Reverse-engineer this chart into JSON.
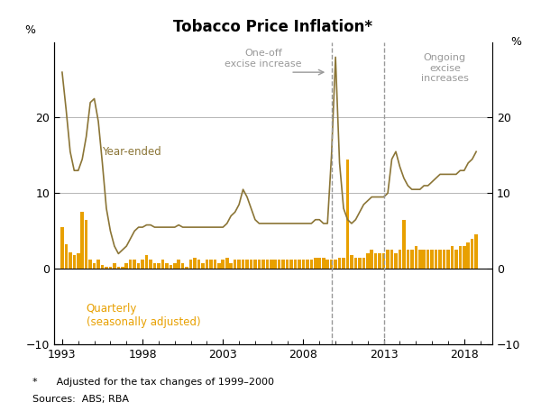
{
  "title": "Tobacco Price Inflation*",
  "footnote": "*      Adjusted for the tax changes of 1999–2000",
  "sources": "Sources:  ABS; RBA",
  "ylim": [
    -10,
    30
  ],
  "yticks": [
    -10,
    0,
    10,
    20
  ],
  "xlim_start": 1992.5,
  "xlim_end": 2019.75,
  "xticks": [
    1993,
    1998,
    2003,
    2008,
    2013,
    2018
  ],
  "dashed_line1": 2009.75,
  "dashed_line2": 2013.0,
  "line_color": "#8B7536",
  "bar_color": "#E8A000",
  "annotation1_text": "One-off\nexcise increase",
  "annotation2_text": "Ongoing\nexcise\nincreases",
  "label_year_ended": "Year-ended",
  "label_quarterly": "Quarterly\n(seasonally adjusted)",
  "quarterly_dates": [
    1993.0,
    1993.25,
    1993.5,
    1993.75,
    1994.0,
    1994.25,
    1994.5,
    1994.75,
    1995.0,
    1995.25,
    1995.5,
    1995.75,
    1996.0,
    1996.25,
    1996.5,
    1996.75,
    1997.0,
    1997.25,
    1997.5,
    1997.75,
    1998.0,
    1998.25,
    1998.5,
    1998.75,
    1999.0,
    1999.25,
    1999.5,
    1999.75,
    2000.0,
    2000.25,
    2000.5,
    2000.75,
    2001.0,
    2001.25,
    2001.5,
    2001.75,
    2002.0,
    2002.25,
    2002.5,
    2002.75,
    2003.0,
    2003.25,
    2003.5,
    2003.75,
    2004.0,
    2004.25,
    2004.5,
    2004.75,
    2005.0,
    2005.25,
    2005.5,
    2005.75,
    2006.0,
    2006.25,
    2006.5,
    2006.75,
    2007.0,
    2007.25,
    2007.5,
    2007.75,
    2008.0,
    2008.25,
    2008.5,
    2008.75,
    2009.0,
    2009.25,
    2009.5,
    2009.75,
    2010.0,
    2010.25,
    2010.5,
    2010.75,
    2011.0,
    2011.25,
    2011.5,
    2011.75,
    2012.0,
    2012.25,
    2012.5,
    2012.75,
    2013.0,
    2013.25,
    2013.5,
    2013.75,
    2014.0,
    2014.25,
    2014.5,
    2014.75,
    2015.0,
    2015.25,
    2015.5,
    2015.75,
    2016.0,
    2016.25,
    2016.5,
    2016.75,
    2017.0,
    2017.25,
    2017.5,
    2017.75,
    2018.0,
    2018.25,
    2018.5,
    2018.75
  ],
  "quarterly_values": [
    5.5,
    3.2,
    2.2,
    1.8,
    2.0,
    7.5,
    6.5,
    1.2,
    0.8,
    1.2,
    0.5,
    0.3,
    0.3,
    0.8,
    0.3,
    0.3,
    0.8,
    1.2,
    1.2,
    0.8,
    1.2,
    1.8,
    1.2,
    0.8,
    0.8,
    1.2,
    0.8,
    0.5,
    0.8,
    1.2,
    0.8,
    0.3,
    1.2,
    1.5,
    1.2,
    0.8,
    1.2,
    1.2,
    1.2,
    0.8,
    1.2,
    1.5,
    0.8,
    1.2,
    1.2,
    1.2,
    1.2,
    1.2,
    1.2,
    1.2,
    1.2,
    1.2,
    1.2,
    1.2,
    1.2,
    1.2,
    1.2,
    1.2,
    1.2,
    1.2,
    1.2,
    1.2,
    1.2,
    1.5,
    1.5,
    1.5,
    1.2,
    1.2,
    1.2,
    1.5,
    1.5,
    14.5,
    1.8,
    1.5,
    1.5,
    1.5,
    2.0,
    2.5,
    2.0,
    2.0,
    2.0,
    2.5,
    2.5,
    2.0,
    2.5,
    6.5,
    2.5,
    2.5,
    3.0,
    2.5,
    2.5,
    2.5,
    2.5,
    2.5,
    2.5,
    2.5,
    2.5,
    3.0,
    2.5,
    3.0,
    3.0,
    3.5,
    4.0,
    4.5
  ],
  "yearly_dates": [
    1993.0,
    1993.25,
    1993.5,
    1993.75,
    1994.0,
    1994.25,
    1994.5,
    1994.75,
    1995.0,
    1995.25,
    1995.5,
    1995.75,
    1996.0,
    1996.25,
    1996.5,
    1996.75,
    1997.0,
    1997.25,
    1997.5,
    1997.75,
    1998.0,
    1998.25,
    1998.5,
    1998.75,
    1999.0,
    1999.25,
    1999.5,
    1999.75,
    2000.0,
    2000.25,
    2000.5,
    2000.75,
    2001.0,
    2001.25,
    2001.5,
    2001.75,
    2002.0,
    2002.25,
    2002.5,
    2002.75,
    2003.0,
    2003.25,
    2003.5,
    2003.75,
    2004.0,
    2004.25,
    2004.5,
    2004.75,
    2005.0,
    2005.25,
    2005.5,
    2005.75,
    2006.0,
    2006.25,
    2006.5,
    2006.75,
    2007.0,
    2007.25,
    2007.5,
    2007.75,
    2008.0,
    2008.25,
    2008.5,
    2008.75,
    2009.0,
    2009.25,
    2009.5,
    2009.75,
    2010.0,
    2010.25,
    2010.5,
    2010.75,
    2011.0,
    2011.25,
    2011.5,
    2011.75,
    2012.0,
    2012.25,
    2012.5,
    2012.75,
    2013.0,
    2013.25,
    2013.5,
    2013.75,
    2014.0,
    2014.25,
    2014.5,
    2014.75,
    2015.0,
    2015.25,
    2015.5,
    2015.75,
    2016.0,
    2016.25,
    2016.5,
    2016.75,
    2017.0,
    2017.25,
    2017.5,
    2017.75,
    2018.0,
    2018.25,
    2018.5,
    2018.75
  ],
  "yearly_values": [
    26.0,
    21.0,
    15.5,
    13.0,
    13.0,
    14.5,
    17.5,
    22.0,
    22.5,
    19.5,
    14.0,
    8.0,
    5.0,
    3.0,
    2.0,
    2.5,
    3.0,
    4.0,
    5.0,
    5.5,
    5.5,
    5.8,
    5.8,
    5.5,
    5.5,
    5.5,
    5.5,
    5.5,
    5.5,
    5.8,
    5.5,
    5.5,
    5.5,
    5.5,
    5.5,
    5.5,
    5.5,
    5.5,
    5.5,
    5.5,
    5.5,
    6.0,
    7.0,
    7.5,
    8.5,
    10.5,
    9.5,
    8.0,
    6.5,
    6.0,
    6.0,
    6.0,
    6.0,
    6.0,
    6.0,
    6.0,
    6.0,
    6.0,
    6.0,
    6.0,
    6.0,
    6.0,
    6.0,
    6.5,
    6.5,
    6.0,
    6.0,
    15.0,
    28.0,
    14.0,
    8.0,
    6.5,
    6.0,
    6.5,
    7.5,
    8.5,
    9.0,
    9.5,
    9.5,
    9.5,
    9.5,
    10.0,
    14.5,
    15.5,
    13.5,
    12.0,
    11.0,
    10.5,
    10.5,
    10.5,
    11.0,
    11.0,
    11.5,
    12.0,
    12.5,
    12.5,
    12.5,
    12.5,
    12.5,
    13.0,
    13.0,
    14.0,
    14.5,
    15.5
  ]
}
